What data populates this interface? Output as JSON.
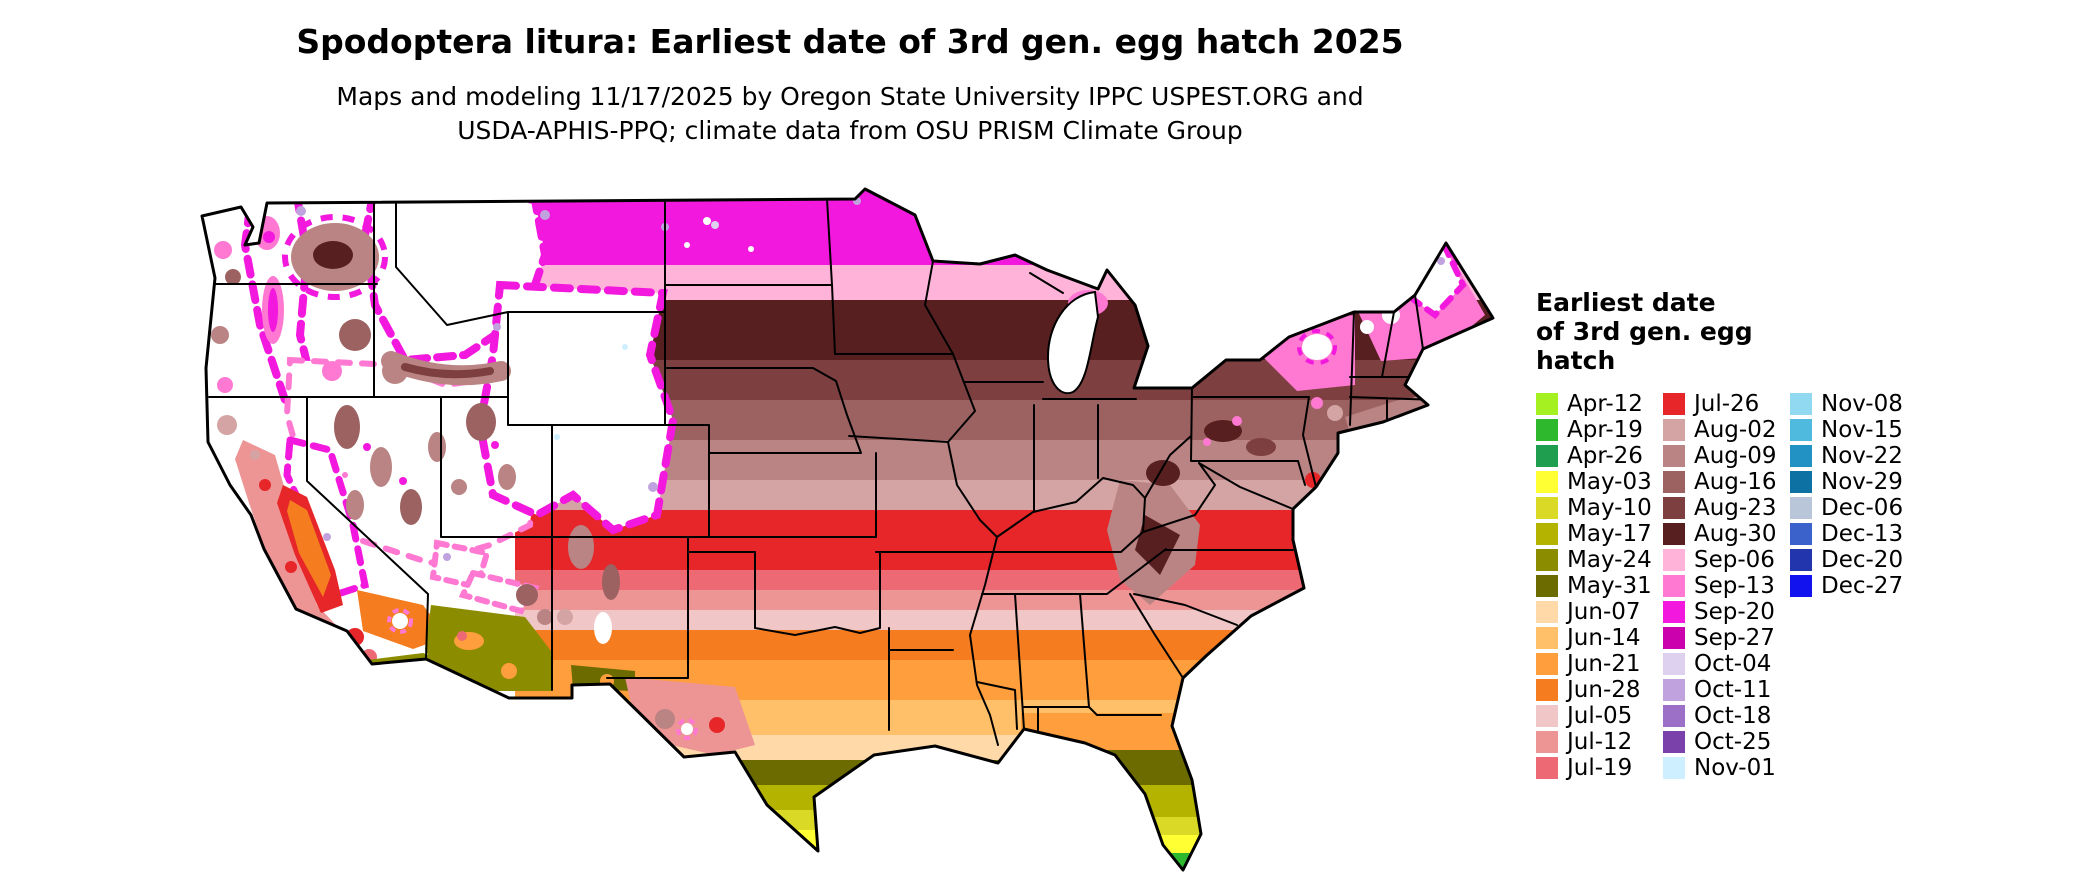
{
  "header": {
    "title": "Spodoptera litura: Earliest date of 3rd gen. egg hatch 2025",
    "subtitle_line1": "Maps and modeling 11/17/2025 by Oregon State University IPPC USPEST.ORG and",
    "subtitle_line2": "USDA-APHIS-PPQ; climate data from OSU PRISM Climate Group"
  },
  "legend": {
    "title_lines": [
      "Earliest date",
      "of 3rd gen. egg",
      "hatch"
    ],
    "columns": [
      [
        {
          "label": "Apr-12",
          "color": "#a4f021"
        },
        {
          "label": "Apr-19",
          "color": "#2eb82e"
        },
        {
          "label": "Apr-26",
          "color": "#1f9e50"
        },
        {
          "label": "May-03",
          "color": "#ffff33"
        },
        {
          "label": "May-10",
          "color": "#d9d926"
        },
        {
          "label": "May-17",
          "color": "#b3b300"
        },
        {
          "label": "May-24",
          "color": "#8c8c00"
        },
        {
          "label": "May-31",
          "color": "#6b6b00"
        },
        {
          "label": "Jun-07",
          "color": "#ffd9a8"
        },
        {
          "label": "Jun-14",
          "color": "#ffc069"
        },
        {
          "label": "Jun-21",
          "color": "#ff9e3d"
        },
        {
          "label": "Jun-28",
          "color": "#f57c1f"
        },
        {
          "label": "Jul-05",
          "color": "#f0c6c6"
        },
        {
          "label": "Jul-12",
          "color": "#ed9494"
        },
        {
          "label": "Jul-19",
          "color": "#ed6a75"
        }
      ],
      [
        {
          "label": "Jul-26",
          "color": "#e62629"
        },
        {
          "label": "Aug-02",
          "color": "#d4a4a4"
        },
        {
          "label": "Aug-09",
          "color": "#ba8484"
        },
        {
          "label": "Aug-16",
          "color": "#9c6262"
        },
        {
          "label": "Aug-23",
          "color": "#7d3f3f"
        },
        {
          "label": "Aug-30",
          "color": "#571f1f"
        },
        {
          "label": "Sep-06",
          "color": "#ffb3d9"
        },
        {
          "label": "Sep-13",
          "color": "#ff78d2"
        },
        {
          "label": "Sep-20",
          "color": "#f318dd"
        },
        {
          "label": "Sep-27",
          "color": "#cb01ad"
        },
        {
          "label": "Oct-04",
          "color": "#ded1ef"
        },
        {
          "label": "Oct-11",
          "color": "#c0a3de"
        },
        {
          "label": "Oct-18",
          "color": "#9c70c6"
        },
        {
          "label": "Oct-25",
          "color": "#7b41aa"
        },
        {
          "label": "Nov-01",
          "color": "#cdefff"
        }
      ],
      [
        {
          "label": "Nov-08",
          "color": "#90d9f0"
        },
        {
          "label": "Nov-15",
          "color": "#4fbade"
        },
        {
          "label": "Nov-22",
          "color": "#2292c4"
        },
        {
          "label": "Nov-29",
          "color": "#0d71a3"
        },
        {
          "label": "Dec-06",
          "color": "#b9c6da"
        },
        {
          "label": "Dec-13",
          "color": "#3b62ca"
        },
        {
          "label": "Dec-20",
          "color": "#2335ad"
        },
        {
          "label": "Dec-27",
          "color": "#1212ef"
        }
      ]
    ]
  }
}
